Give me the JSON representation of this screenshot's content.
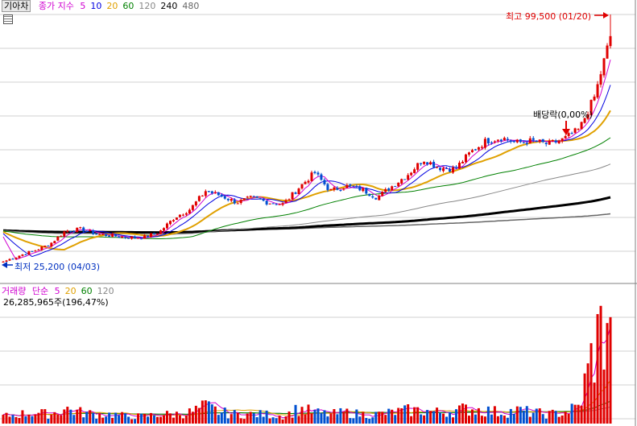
{
  "price_legend": {
    "title": "기아차",
    "ma_label": "종가 지수",
    "periods": [
      {
        "label": "5",
        "color": "#d000d0"
      },
      {
        "label": "10",
        "color": "#0000e0"
      },
      {
        "label": "20",
        "color": "#e0a000"
      },
      {
        "label": "60",
        "color": "#008000"
      },
      {
        "label": "120",
        "color": "#888888"
      },
      {
        "label": "240",
        "color": "#000000"
      },
      {
        "label": "480",
        "color": "#666666"
      }
    ]
  },
  "volume_legend": {
    "title": "거래량",
    "ma_label": "단순",
    "periods": [
      {
        "label": "5",
        "color": "#d000d0"
      },
      {
        "label": "20",
        "color": "#e0a000"
      },
      {
        "label": "60",
        "color": "#008000"
      },
      {
        "label": "120",
        "color": "#888888"
      }
    ],
    "last_volume": "26,285,965주(196,47%)"
  },
  "annotations": {
    "high_label": "최고 99,500 (01/20)",
    "low_label": "최저 25,200 (04/03)",
    "dividend_label": "배당락(0,00%)"
  },
  "colors": {
    "up": "#e00000",
    "down": "#0050d0",
    "grid": "#d0d0d0"
  },
  "chart_data": {
    "type": "candlestick",
    "title": "기아차",
    "price_range": [
      25200,
      99500
    ],
    "key_points": [
      {
        "label": "최저",
        "value": 25200,
        "date": "04/03"
      },
      {
        "label": "최고",
        "value": 99500,
        "date": "01/20"
      }
    ],
    "close_trend": [
      25200,
      27000,
      28500,
      30500,
      34500,
      35000,
      33500,
      33000,
      32500,
      32500,
      34000,
      38500,
      41000,
      46500,
      45000,
      43000,
      44500,
      43000,
      42500,
      47500,
      52000,
      46500,
      48000,
      47000,
      44500,
      48000,
      51500,
      56000,
      53500,
      53000,
      58000,
      61500,
      62500,
      61000,
      61500,
      60500,
      62000,
      65000,
      75000,
      93000
    ],
    "volume_trend": [
      3,
      4,
      5,
      4,
      7,
      5,
      4,
      4,
      3,
      3,
      4,
      4,
      5,
      8,
      5,
      4,
      4,
      4,
      3,
      7,
      5,
      4,
      5,
      4,
      4,
      5,
      6,
      6,
      5,
      6,
      7,
      6,
      5,
      6,
      5,
      4,
      5,
      8,
      40,
      55
    ]
  }
}
